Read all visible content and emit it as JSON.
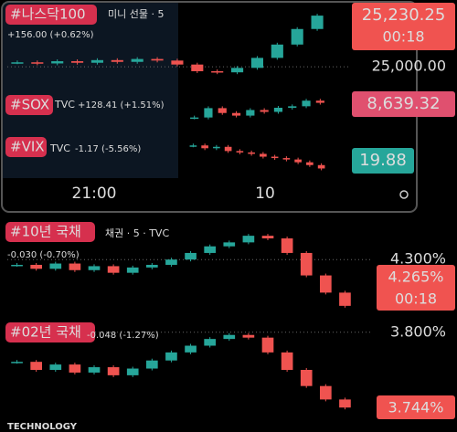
{
  "panels": [
    {
      "label": "#나스닥100",
      "subtitle": "미니 선물 · 5",
      "change": "+156.00 (+0.62%)",
      "price": "25,230.25",
      "countdown": "00:18",
      "level": {
        "value": 25000,
        "label": "25,000.00"
      },
      "ylim": [
        24910,
        25280
      ],
      "closes": [
        25020,
        25015,
        25025,
        25018,
        25030,
        25022,
        25035,
        25028,
        25010,
        24980,
        24975,
        24995,
        25040,
        25100,
        25170,
        25230.25
      ]
    },
    {
      "label": "#SOX",
      "subtitle": "TVC",
      "change": "+128.41 (+1.51%)",
      "price": "8,639.32",
      "ylim": [
        8560,
        8670
      ],
      "closes": [
        8600,
        8625,
        8612,
        8605,
        8620,
        8615,
        8626,
        8630,
        8645,
        8639.32
      ]
    },
    {
      "label": "#VIX",
      "subtitle": "TVC",
      "change": "-1.17 (-5.56%)",
      "price": "19.88",
      "ylim": [
        19.7,
        21.0
      ],
      "closes": [
        20.7,
        20.6,
        20.65,
        20.5,
        20.45,
        20.4,
        20.3,
        20.25,
        20.2,
        20.1,
        20.0,
        19.88
      ]
    },
    {
      "label": "#10년 국채",
      "subtitle": "채권 · 5 · TVC",
      "change": "-0.030 (-0.70%)",
      "price": "4.265%",
      "countdown": "00:18",
      "level": {
        "value": 4.3,
        "label": "4.300%"
      },
      "ylim": [
        4.258,
        4.325
      ],
      "closes": [
        4.296,
        4.293,
        4.297,
        4.292,
        4.295,
        4.29,
        4.294,
        4.296,
        4.3,
        4.305,
        4.31,
        4.313,
        4.318,
        4.316,
        4.305,
        4.288,
        4.275,
        4.265
      ]
    },
    {
      "label": "#02년 국채",
      "change": "-0.048 (-1.27%)",
      "price": "3.744%",
      "level": {
        "value": 3.8,
        "label": "3.800%"
      },
      "ylim": [
        3.736,
        3.808
      ],
      "closes": [
        3.778,
        3.772,
        3.776,
        3.77,
        3.774,
        3.768,
        3.773,
        3.779,
        3.785,
        3.79,
        3.795,
        3.798,
        3.796,
        3.785,
        3.772,
        3.76,
        3.75,
        3.744
      ]
    }
  ],
  "time_axis": [
    "21:00",
    "10"
  ],
  "footer": "TECHNOLOGY"
}
